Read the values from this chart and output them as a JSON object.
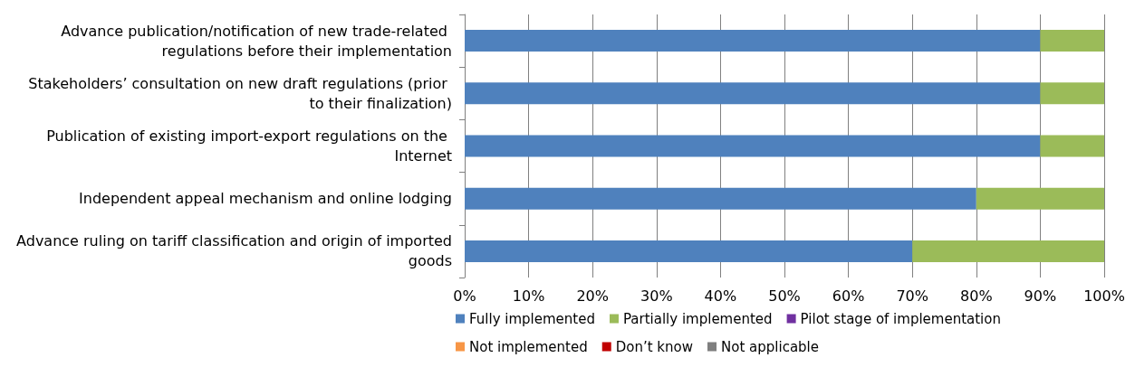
{
  "chart_data": {
    "type": "bar",
    "orientation": "horizontal",
    "stacked": true,
    "categories": [
      "Advance publication/notification of new trade-related regulations before their implementation",
      "Stakeholders’ consultation on new draft regulations (prior to their finalization)",
      "Publication of existing import-export regulations on the Internet",
      "Independent appeal mechanism and online lodging",
      "Advance ruling on tariff classification and origin of imported goods"
    ],
    "series": [
      {
        "name": "Fully implemented",
        "color": "#4f81bd",
        "values": [
          90,
          90,
          90,
          80,
          70
        ]
      },
      {
        "name": "Partially implemented",
        "color": "#9bbb59",
        "values": [
          10,
          10,
          10,
          20,
          30
        ]
      },
      {
        "name": "Pilot stage of implementation",
        "color": "#7030a0",
        "values": [
          0,
          0,
          0,
          0,
          0
        ]
      },
      {
        "name": "Not implemented",
        "color": "#f79646",
        "values": [
          0,
          0,
          0,
          0,
          0
        ]
      },
      {
        "name": "Don’t know",
        "color": "#c00000",
        "values": [
          0,
          0,
          0,
          0,
          0
        ]
      },
      {
        "name": "Not applicable",
        "color": "#7f7f7f",
        "values": [
          0,
          0,
          0,
          0,
          0
        ]
      }
    ],
    "xlim": [
      0,
      100
    ],
    "xticks": [
      {
        "value": 0,
        "label": "0%"
      },
      {
        "value": 10,
        "label": "10%"
      },
      {
        "value": 20,
        "label": "20%"
      },
      {
        "value": 30,
        "label": "30%"
      },
      {
        "value": 40,
        "label": "40%"
      },
      {
        "value": 50,
        "label": "50%"
      },
      {
        "value": 60,
        "label": "60%"
      },
      {
        "value": 70,
        "label": "70%"
      },
      {
        "value": 80,
        "label": "80%"
      },
      {
        "value": 90,
        "label": "90%"
      },
      {
        "value": 100,
        "label": "100%"
      }
    ],
    "grid": "x",
    "legend": "bottom"
  }
}
